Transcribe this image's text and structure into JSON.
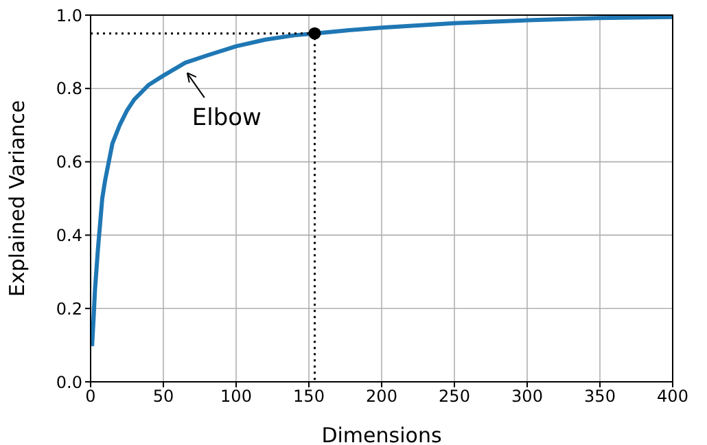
{
  "chart_data": {
    "type": "line",
    "xlabel": "Dimensions",
    "ylabel": "Explained Variance",
    "xlim": [
      0,
      400
    ],
    "ylim": [
      0,
      1
    ],
    "xticks": [
      0,
      50,
      100,
      150,
      200,
      250,
      300,
      350,
      400
    ],
    "yticks": [
      {
        "value": 0,
        "label": "0.0"
      },
      {
        "value": 0.2,
        "label": "0.2"
      },
      {
        "value": 0.4,
        "label": "0.4"
      },
      {
        "value": 0.6,
        "label": "0.6"
      },
      {
        "value": 0.8,
        "label": "0.8"
      },
      {
        "value": 1,
        "label": "1.0"
      }
    ],
    "grid": true,
    "annotations": [
      {
        "text": "Elbow",
        "x": 65,
        "y": 0.85
      }
    ],
    "series": [
      {
        "color": "#1f77b4",
        "marker": "none",
        "line_style": "solid",
        "x": [
          1,
          2,
          3,
          5,
          8,
          10,
          15,
          20,
          25,
          30,
          40,
          50,
          65,
          80,
          100,
          120,
          140,
          154,
          175,
          200,
          250,
          300,
          350,
          400
        ],
        "values": [
          0.097,
          0.17,
          0.25,
          0.36,
          0.5,
          0.55,
          0.65,
          0.7,
          0.74,
          0.77,
          0.81,
          0.835,
          0.87,
          0.89,
          0.915,
          0.933,
          0.945,
          0.95,
          0.958,
          0.966,
          0.978,
          0.986,
          0.992,
          0.995
        ]
      },
      {
        "type": "line",
        "color": "#000000",
        "marker": "none",
        "line_style": "dotted",
        "x": [
          0,
          154,
          154
        ],
        "values": [
          0.95,
          0.95,
          0
        ]
      },
      {
        "type": "scatter",
        "color": "#000000",
        "marker": "circle",
        "x": [
          154
        ],
        "values": [
          0.95
        ]
      }
    ]
  }
}
